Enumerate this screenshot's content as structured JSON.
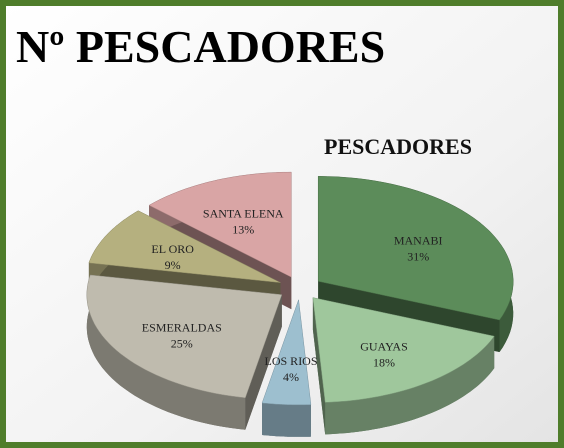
{
  "chart_data": {
    "type": "pie3d",
    "slide_title": "Nº PESCADORES",
    "title": "PESCADORES",
    "categories": [
      "MANABI",
      "GUAYAS",
      "LOS RIOS",
      "ESMERALDAS",
      "EL ORO",
      "SANTA ELENA"
    ],
    "values": [
      31,
      18,
      4,
      25,
      9,
      13
    ],
    "value_labels": [
      "31%",
      "18%",
      "4%",
      "25%",
      "9%",
      "13%"
    ],
    "colors": [
      "#5c8c5a",
      "#9fc79c",
      "#9dbfcf",
      "#bfbbae",
      "#b5b07f",
      "#d9a5a5"
    ]
  }
}
